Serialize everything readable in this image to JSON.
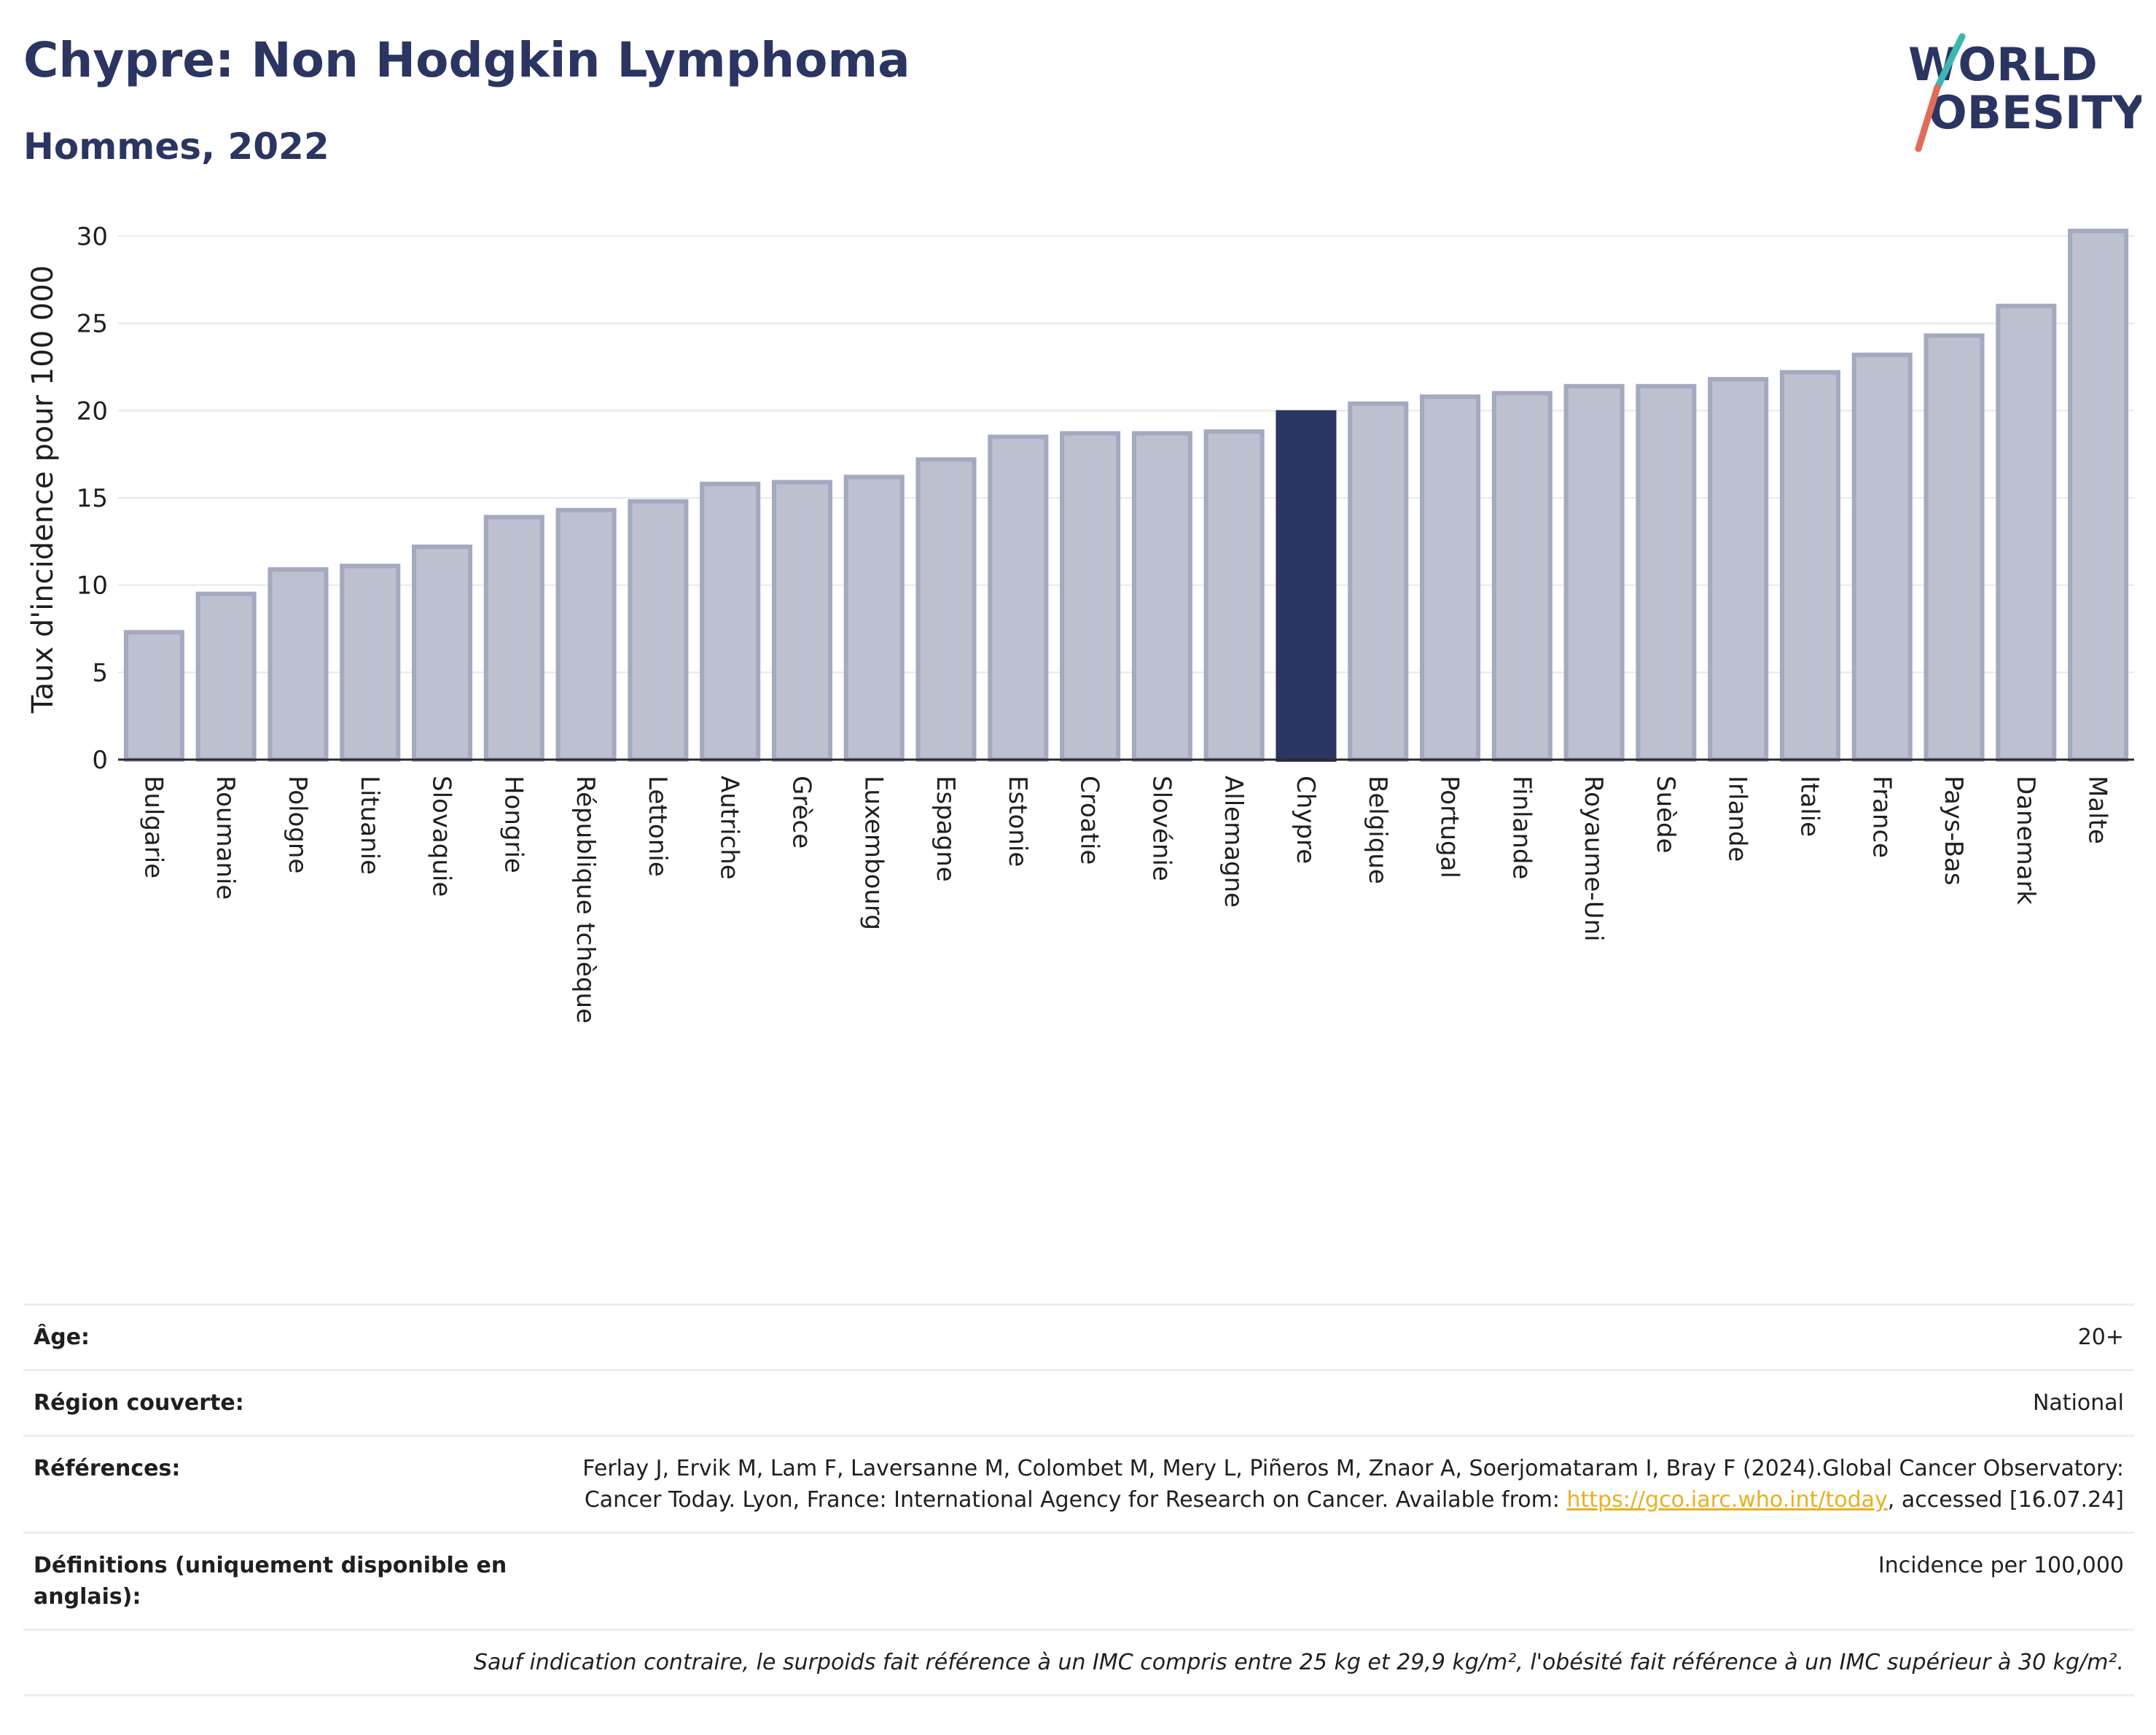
{
  "header": {
    "title": "Chypre: Non Hodgkin Lymphoma",
    "subtitle": "Hommes, 2022"
  },
  "logo": {
    "line1": "WORLD",
    "line2": "OBESITY"
  },
  "colors": {
    "highlight": "#2b3562",
    "bar": "#bcc0cf",
    "bar_border": "#a3a9c0",
    "title": "#2b3562",
    "link": "#e8b021"
  },
  "chart_data": {
    "type": "bar",
    "ylabel": "Taux d'incidence pour 100 000",
    "ylim": [
      0,
      31
    ],
    "yticks": [
      0,
      5,
      10,
      15,
      20,
      25,
      30
    ],
    "grid": true,
    "highlight": "Chypre",
    "categories": [
      "Bulgarie",
      "Roumanie",
      "Pologne",
      "Lituanie",
      "Slovaquie",
      "Hongrie",
      "République tchèque",
      "Lettonie",
      "Autriche",
      "Grèce",
      "Luxembourg",
      "Espagne",
      "Estonie",
      "Croatie",
      "Slovénie",
      "Allemagne",
      "Chypre",
      "Belgique",
      "Portugal",
      "Finlande",
      "Royaume-Uni",
      "Suède",
      "Irlande",
      "Italie",
      "France",
      "Pays-Bas",
      "Danemark",
      "Malte"
    ],
    "values": [
      7.3,
      9.5,
      10.9,
      11.1,
      12.2,
      13.9,
      14.3,
      14.8,
      15.8,
      15.9,
      16.2,
      17.2,
      18.5,
      18.7,
      18.7,
      18.8,
      19.9,
      20.4,
      20.8,
      21.0,
      21.4,
      21.4,
      21.8,
      22.2,
      23.2,
      24.3,
      26.0,
      30.3
    ]
  },
  "metadata": {
    "rows": [
      {
        "label": "Âge:",
        "value": "20+"
      },
      {
        "label": "Région couverte:",
        "value": "National"
      },
      {
        "label": "Références:",
        "value": "Ferlay J, Ervik M, Lam F, Laversanne M, Colombet M, Mery L, Piñeros M, Znaor A, Soerjomataram I, Bray F (2024).Global Cancer Observatory: Cancer Today. Lyon, France: International Agency for Research on Cancer. Available from: ",
        "link": "https://gco.iarc.who.int/today",
        "suffix": ", accessed [16.07.24]"
      },
      {
        "label": "Définitions (uniquement disponible en anglais):",
        "value": "Incidence per 100,000"
      }
    ],
    "note": "Sauf indication contraire, le surpoids fait référence à un IMC compris entre 25 kg et 29,9 kg/m², l'obésité fait référence à un IMC supérieur à 30 kg/m²."
  }
}
